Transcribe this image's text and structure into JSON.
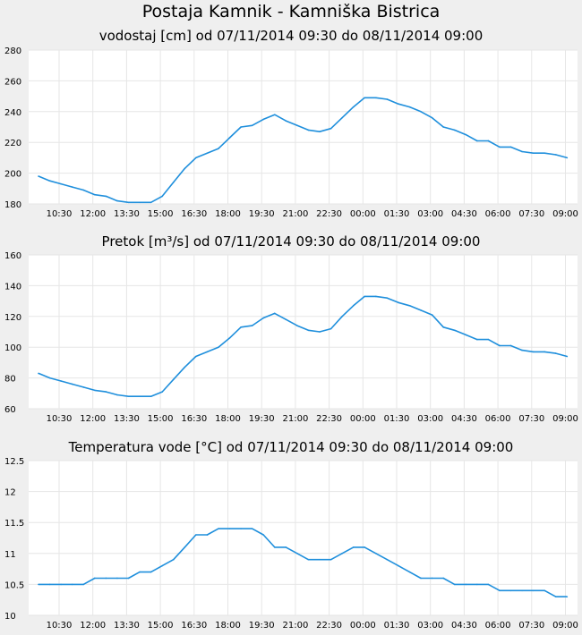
{
  "page_title": "Postaja Kamnik - Kamniška Bistrica",
  "x_ticks": [
    "10:30",
    "12:00",
    "13:30",
    "15:00",
    "16:30",
    "18:00",
    "19:30",
    "21:00",
    "22:30",
    "00:00",
    "01:30",
    "03:00",
    "04:30",
    "06:00",
    "07:30",
    "09:00"
  ],
  "colors": {
    "line": "#1f8fdc",
    "plot_bg": "#ffffff",
    "page_bg": "#efefef",
    "grid": "#e6e6e6"
  },
  "chart_data": [
    {
      "type": "line",
      "title": "vodostaj [cm] od 07/11/2014 09:30 do 08/11/2014 09:00",
      "xlabel": "",
      "ylabel": "",
      "ylim": [
        180,
        280
      ],
      "yticks": [
        "180",
        "200",
        "220",
        "240",
        "260",
        "280"
      ],
      "x": [
        "09:30",
        "10:00",
        "10:30",
        "11:00",
        "11:30",
        "12:00",
        "12:30",
        "13:00",
        "13:30",
        "14:00",
        "14:30",
        "15:00",
        "15:30",
        "16:00",
        "16:30",
        "17:00",
        "17:30",
        "18:00",
        "18:30",
        "19:00",
        "19:30",
        "20:00",
        "20:30",
        "21:00",
        "21:30",
        "22:00",
        "22:30",
        "23:00",
        "23:30",
        "00:00",
        "00:30",
        "01:00",
        "01:30",
        "02:00",
        "02:30",
        "03:00",
        "03:30",
        "04:00",
        "04:30",
        "05:00",
        "05:30",
        "06:00",
        "06:30",
        "07:00",
        "07:30",
        "08:00",
        "08:30",
        "09:00"
      ],
      "values": [
        198,
        195,
        193,
        191,
        189,
        186,
        185,
        182,
        181,
        181,
        181,
        185,
        194,
        203,
        210,
        213,
        216,
        223,
        230,
        231,
        235,
        238,
        234,
        231,
        228,
        227,
        229,
        236,
        243,
        249,
        249,
        248,
        245,
        243,
        240,
        236,
        230,
        228,
        225,
        221,
        221,
        217,
        217,
        214,
        213,
        213,
        212,
        210
      ]
    },
    {
      "type": "line",
      "title": "Pretok [m³/s] od 07/11/2014 09:30 do 08/11/2014 09:00",
      "xlabel": "",
      "ylabel": "",
      "ylim": [
        60,
        160
      ],
      "yticks": [
        "60",
        "80",
        "100",
        "120",
        "140",
        "160"
      ],
      "x": [
        "09:30",
        "10:00",
        "10:30",
        "11:00",
        "11:30",
        "12:00",
        "12:30",
        "13:00",
        "13:30",
        "14:00",
        "14:30",
        "15:00",
        "15:30",
        "16:00",
        "16:30",
        "17:00",
        "17:30",
        "18:00",
        "18:30",
        "19:00",
        "19:30",
        "20:00",
        "20:30",
        "21:00",
        "21:30",
        "22:00",
        "22:30",
        "23:00",
        "23:30",
        "00:00",
        "00:30",
        "01:00",
        "01:30",
        "02:00",
        "02:30",
        "03:00",
        "03:30",
        "04:00",
        "04:30",
        "05:00",
        "05:30",
        "06:00",
        "06:30",
        "07:00",
        "07:30",
        "08:00",
        "08:30",
        "09:00"
      ],
      "values": [
        83,
        80,
        78,
        76,
        74,
        72,
        71,
        69,
        68,
        68,
        68,
        71,
        79,
        87,
        94,
        97,
        100,
        106,
        113,
        114,
        119,
        122,
        118,
        114,
        111,
        110,
        112,
        120,
        127,
        133,
        133,
        132,
        129,
        127,
        124,
        121,
        113,
        111,
        108,
        105,
        105,
        101,
        101,
        98,
        97,
        97,
        96,
        94
      ]
    },
    {
      "type": "line",
      "title": "Temperatura vode [°C] od 07/11/2014 09:30 do 08/11/2014 09:00",
      "xlabel": "",
      "ylabel": "",
      "ylim": [
        10,
        12.5
      ],
      "yticks": [
        "10",
        "10.5",
        "11",
        "11.5",
        "12",
        "12.5"
      ],
      "x": [
        "09:30",
        "10:00",
        "10:30",
        "11:00",
        "11:30",
        "12:00",
        "12:30",
        "13:00",
        "13:30",
        "14:00",
        "14:30",
        "15:00",
        "15:30",
        "16:00",
        "16:30",
        "17:00",
        "17:30",
        "18:00",
        "18:30",
        "19:00",
        "19:30",
        "20:00",
        "20:30",
        "21:00",
        "21:30",
        "22:00",
        "22:30",
        "23:00",
        "23:30",
        "00:00",
        "00:30",
        "01:00",
        "01:30",
        "02:00",
        "02:30",
        "03:00",
        "03:30",
        "04:00",
        "04:30",
        "05:00",
        "05:30",
        "06:00",
        "06:30",
        "07:00",
        "07:30",
        "08:00",
        "08:30",
        "09:00"
      ],
      "values": [
        10.5,
        10.5,
        10.5,
        10.5,
        10.5,
        10.6,
        10.6,
        10.6,
        10.6,
        10.7,
        10.7,
        10.8,
        10.9,
        11.1,
        11.3,
        11.3,
        11.4,
        11.4,
        11.4,
        11.4,
        11.3,
        11.1,
        11.1,
        11.0,
        10.9,
        10.9,
        10.9,
        11.0,
        11.1,
        11.1,
        11.0,
        10.9,
        10.8,
        10.7,
        10.6,
        10.6,
        10.6,
        10.5,
        10.5,
        10.5,
        10.5,
        10.4,
        10.4,
        10.4,
        10.4,
        10.4,
        10.3,
        10.3
      ]
    }
  ]
}
